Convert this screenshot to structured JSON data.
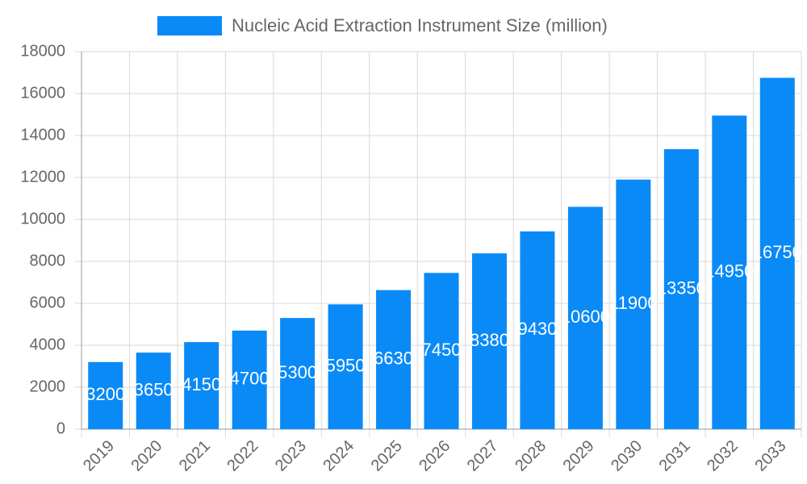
{
  "chart_data": {
    "type": "bar",
    "categories": [
      "2019",
      "2020",
      "2021",
      "2022",
      "2023",
      "2024",
      "2025",
      "2026",
      "2027",
      "2028",
      "2029",
      "2030",
      "2031",
      "2032",
      "2033"
    ],
    "series": [
      {
        "name": "Nucleic Acid Extraction Instrument Size (million)",
        "color": "#0a8af7",
        "values": [
          3200,
          3650,
          4150,
          4700,
          5300,
          5950,
          6630,
          7450,
          8380,
          9430,
          10600,
          11900,
          13350,
          14950,
          16750
        ]
      }
    ],
    "ylim": [
      0,
      18000
    ],
    "yticks": [
      0,
      2000,
      4000,
      6000,
      8000,
      10000,
      12000,
      14000,
      16000,
      18000
    ],
    "grid": true,
    "legend": "top"
  }
}
